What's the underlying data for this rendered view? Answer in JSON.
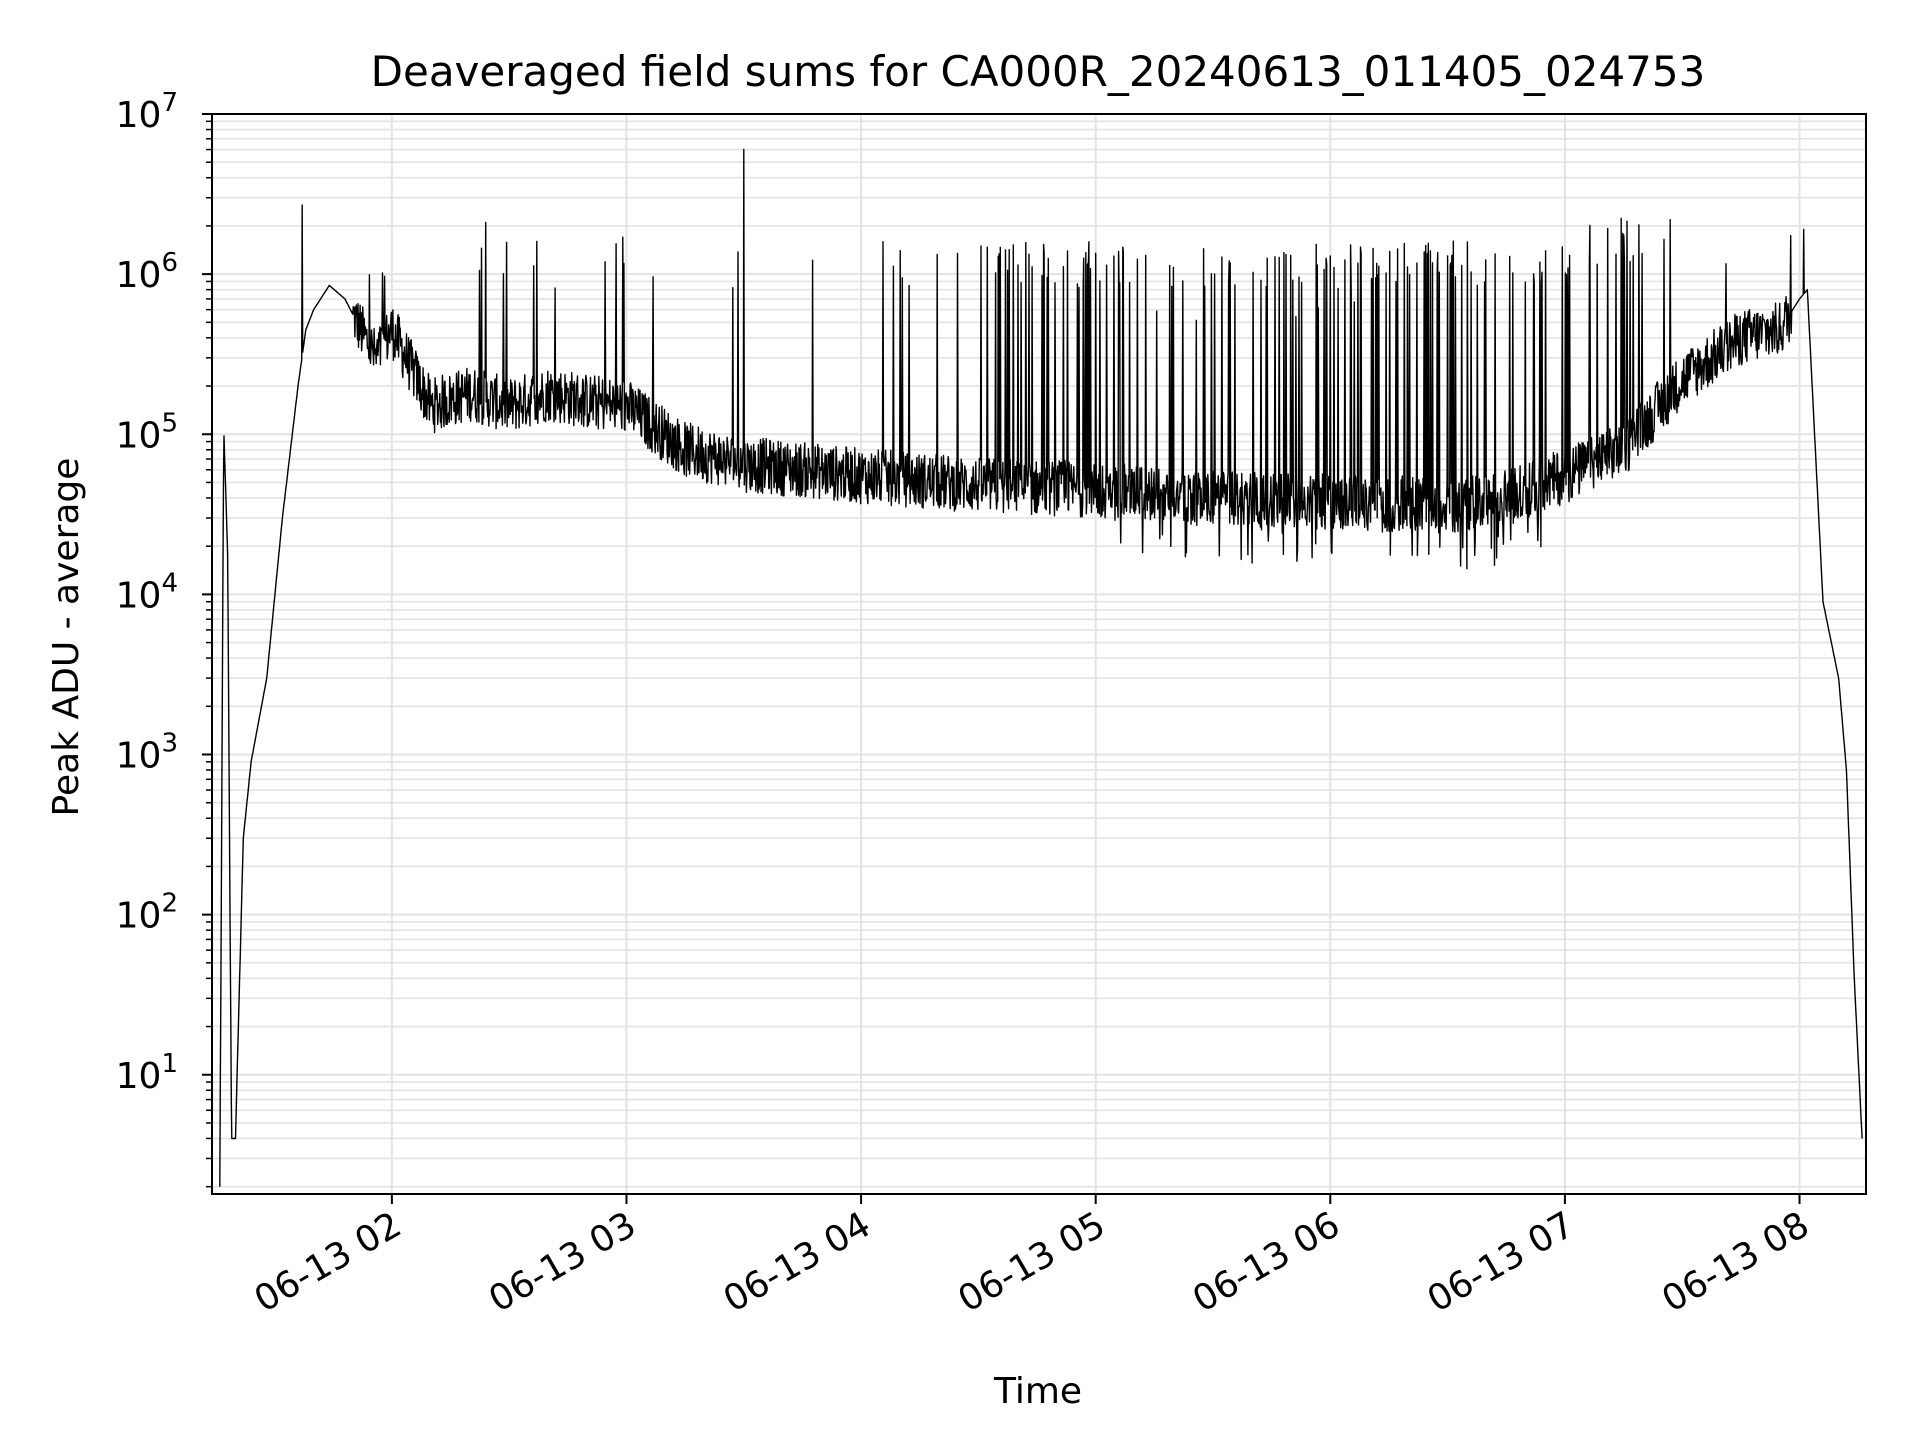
{
  "chart_data": {
    "type": "line",
    "title": "Deaveraged field sums for CA000R_20240613_011405_024753",
    "xlabel": "Time",
    "ylabel": "Peak ADU - average",
    "yscale": "log",
    "grid": true,
    "legend": "none",
    "colors": {
      "line": "#000000",
      "grid": "#e3e3e3",
      "axes": "#000000"
    },
    "xlim": [
      "2024-06-13 01:14",
      "2024-06-13 08:17"
    ],
    "ylim": [
      1.8,
      10000000
    ],
    "y_ticks": [
      {
        "value": 10,
        "base": "10",
        "exp": "1"
      },
      {
        "value": 100,
        "base": "10",
        "exp": "2"
      },
      {
        "value": 1000,
        "base": "10",
        "exp": "3"
      },
      {
        "value": 10000,
        "base": "10",
        "exp": "4"
      },
      {
        "value": 100000,
        "base": "10",
        "exp": "5"
      },
      {
        "value": 1000000,
        "base": "10",
        "exp": "6"
      },
      {
        "value": 10000000,
        "base": "10",
        "exp": "7"
      }
    ],
    "x_ticks": [
      {
        "value": "2024-06-13 02:00",
        "label": "06-13 02"
      },
      {
        "value": "2024-06-13 03:00",
        "label": "06-13 03"
      },
      {
        "value": "2024-06-13 04:00",
        "label": "06-13 04"
      },
      {
        "value": "2024-06-13 05:00",
        "label": "06-13 05"
      },
      {
        "value": "2024-06-13 06:00",
        "label": "06-13 06"
      },
      {
        "value": "2024-06-13 07:00",
        "label": "06-13 07"
      },
      {
        "value": "2024-06-13 08:00",
        "label": "06-13 08"
      }
    ],
    "series": [
      {
        "x": [
          "2024-06-13 01:16",
          "2024-06-13 01:17",
          "2024-06-13 01:18",
          "2024-06-13 01:19",
          "2024-06-13 01:20",
          "2024-06-13 01:22",
          "2024-06-13 01:24",
          "2024-06-13 01:28",
          "2024-06-13 01:32",
          "2024-06-13 01:36",
          "2024-06-13 01:38",
          "2024-06-13 01:40",
          "2024-06-13 01:44",
          "2024-06-13 01:48",
          "2024-06-13 01:52",
          "2024-06-13 01:56",
          "2024-06-13 02:00",
          "2024-06-13 02:10",
          "2024-06-13 02:20",
          "2024-06-13 02:30",
          "2024-06-13 02:40",
          "2024-06-13 02:50",
          "2024-06-13 03:00",
          "2024-06-13 03:15",
          "2024-06-13 03:30",
          "2024-06-13 03:45",
          "2024-06-13 04:00",
          "2024-06-13 04:30",
          "2024-06-13 05:00",
          "2024-06-13 05:30",
          "2024-06-13 06:00",
          "2024-06-13 06:30",
          "2024-06-13 06:45",
          "2024-06-13 07:00",
          "2024-06-13 07:15",
          "2024-06-13 07:30",
          "2024-06-13 07:45",
          "2024-06-13 07:55",
          "2024-06-13 08:00",
          "2024-06-13 08:02",
          "2024-06-13 08:06",
          "2024-06-13 08:10",
          "2024-06-13 08:12",
          "2024-06-13 08:14",
          "2024-06-13 08:16"
        ],
        "y": [
          2,
          110000,
          18000,
          4,
          4,
          300,
          900,
          3000,
          30000,
          200000,
          450000,
          600000,
          850000,
          700000,
          450000,
          300000,
          450000,
          150000,
          180000,
          150000,
          180000,
          160000,
          150000,
          80000,
          65000,
          60000,
          55000,
          48000,
          45000,
          40000,
          38000,
          36000,
          40000,
          55000,
          80000,
          220000,
          400000,
          450000,
          700000,
          800000,
          9000,
          3000,
          800,
          40,
          4
        ],
        "spikes": [
          [
            "2024-06-13 01:37",
            2700000
          ],
          [
            "2024-06-13 02:24",
            2100000
          ],
          [
            "2024-06-13 02:37",
            1600000
          ],
          [
            "2024-06-13 02:59",
            1700000
          ],
          [
            "2024-06-13 03:30",
            6000000
          ],
          [
            "2024-06-13 04:10",
            1400000
          ],
          [
            "2024-06-13 05:00",
            1350000
          ],
          [
            "2024-06-13 06:00",
            1300000
          ],
          [
            "2024-06-13 06:30",
            1300000
          ],
          [
            "2024-06-13 07:15",
            1750000
          ],
          [
            "2024-06-13 08:01",
            1900000
          ]
        ]
      }
    ]
  }
}
